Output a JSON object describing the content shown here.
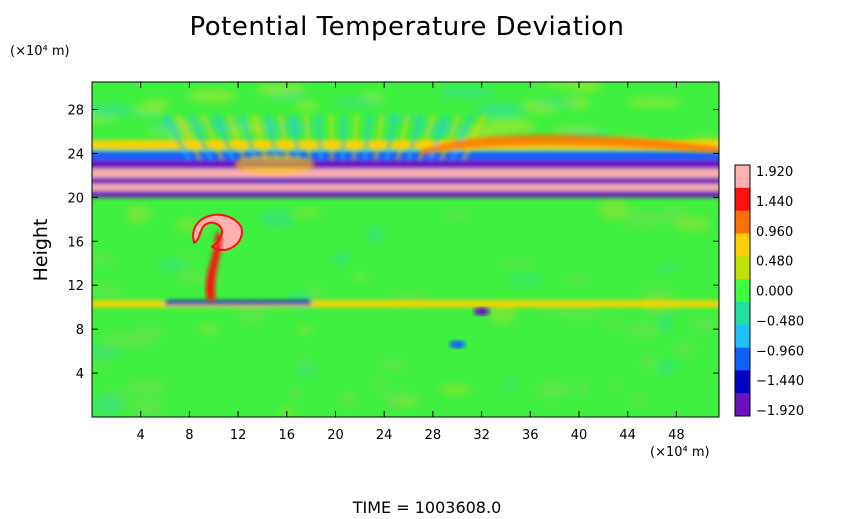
{
  "chart_data": {
    "type": "heatmap",
    "title": "Potential Temperature Deviation",
    "ylabel": "Height",
    "y_unit_label": "(×10⁴ m)",
    "x_unit_label": "(×10⁴ m)",
    "footer": "TIME = 1003608.0",
    "xlim": [
      0,
      51.5
    ],
    "ylim": [
      0,
      30.5
    ],
    "x_ticks": [
      4,
      8,
      12,
      16,
      20,
      24,
      28,
      32,
      36,
      40,
      44,
      48
    ],
    "x_tick_labels": [
      "4",
      "8",
      "12",
      "16",
      "20",
      "24",
      "28",
      "32",
      "36",
      "40",
      "44",
      "48"
    ],
    "y_ticks": [
      4,
      8,
      12,
      16,
      20,
      24,
      28
    ],
    "y_tick_labels": [
      "4",
      "8",
      "12",
      "16",
      "20",
      "24",
      "28"
    ],
    "colorbar": {
      "levels": [
        1.92,
        1.44,
        0.96,
        0.48,
        0.0,
        -0.48,
        -0.96,
        -1.44,
        -1.92
      ],
      "labels": [
        "1.920",
        "1.440",
        "0.960",
        "0.480",
        "0.000",
        "−0.480",
        "−0.960",
        "−1.440",
        "−1.920"
      ],
      "colors_top_to_bottom": [
        "#ffb0b0",
        "#ff1010",
        "#ff7000",
        "#ffd000",
        "#c0e000",
        "#40ff40",
        "#20e0a0",
        "#20c0ff",
        "#1060ff",
        "#0000c0",
        "#6a10c0"
      ]
    },
    "background_color": "#40f040",
    "bands": [
      {
        "y_from": 20.0,
        "y_to": 20.6,
        "value": -1.92
      },
      {
        "y_from": 20.6,
        "y_to": 21.2,
        "value": 1.92
      },
      {
        "y_from": 21.2,
        "y_to": 21.8,
        "value": -1.92
      },
      {
        "y_from": 21.8,
        "y_to": 22.6,
        "value": 1.92
      },
      {
        "y_from": 22.6,
        "y_to": 23.4,
        "value": -1.92
      },
      {
        "y_from": 23.4,
        "y_to": 24.2,
        "value": -0.96
      },
      {
        "y_from": 24.4,
        "y_to": 25.2,
        "value": 0.96
      },
      {
        "y_from": 10.0,
        "y_to": 10.6,
        "value": 0.96
      },
      {
        "y_from": 10.2,
        "y_to": 10.6,
        "value": -1.44,
        "x_from": 6,
        "x_to": 18
      }
    ],
    "features": [
      {
        "name": "plume-head",
        "x": 10.2,
        "y": 16.6,
        "value": 1.92
      },
      {
        "name": "plume-stem",
        "x": 9.8,
        "y": 13.0,
        "value": 1.44
      },
      {
        "name": "wave-cluster",
        "x": 15,
        "y": 23,
        "value": 0.96
      },
      {
        "name": "deep-blob",
        "x": 32,
        "y": 9.6,
        "value": -1.92
      },
      {
        "name": "cyan-blob",
        "x": 30,
        "y": 6.6,
        "value": -0.96
      }
    ]
  }
}
